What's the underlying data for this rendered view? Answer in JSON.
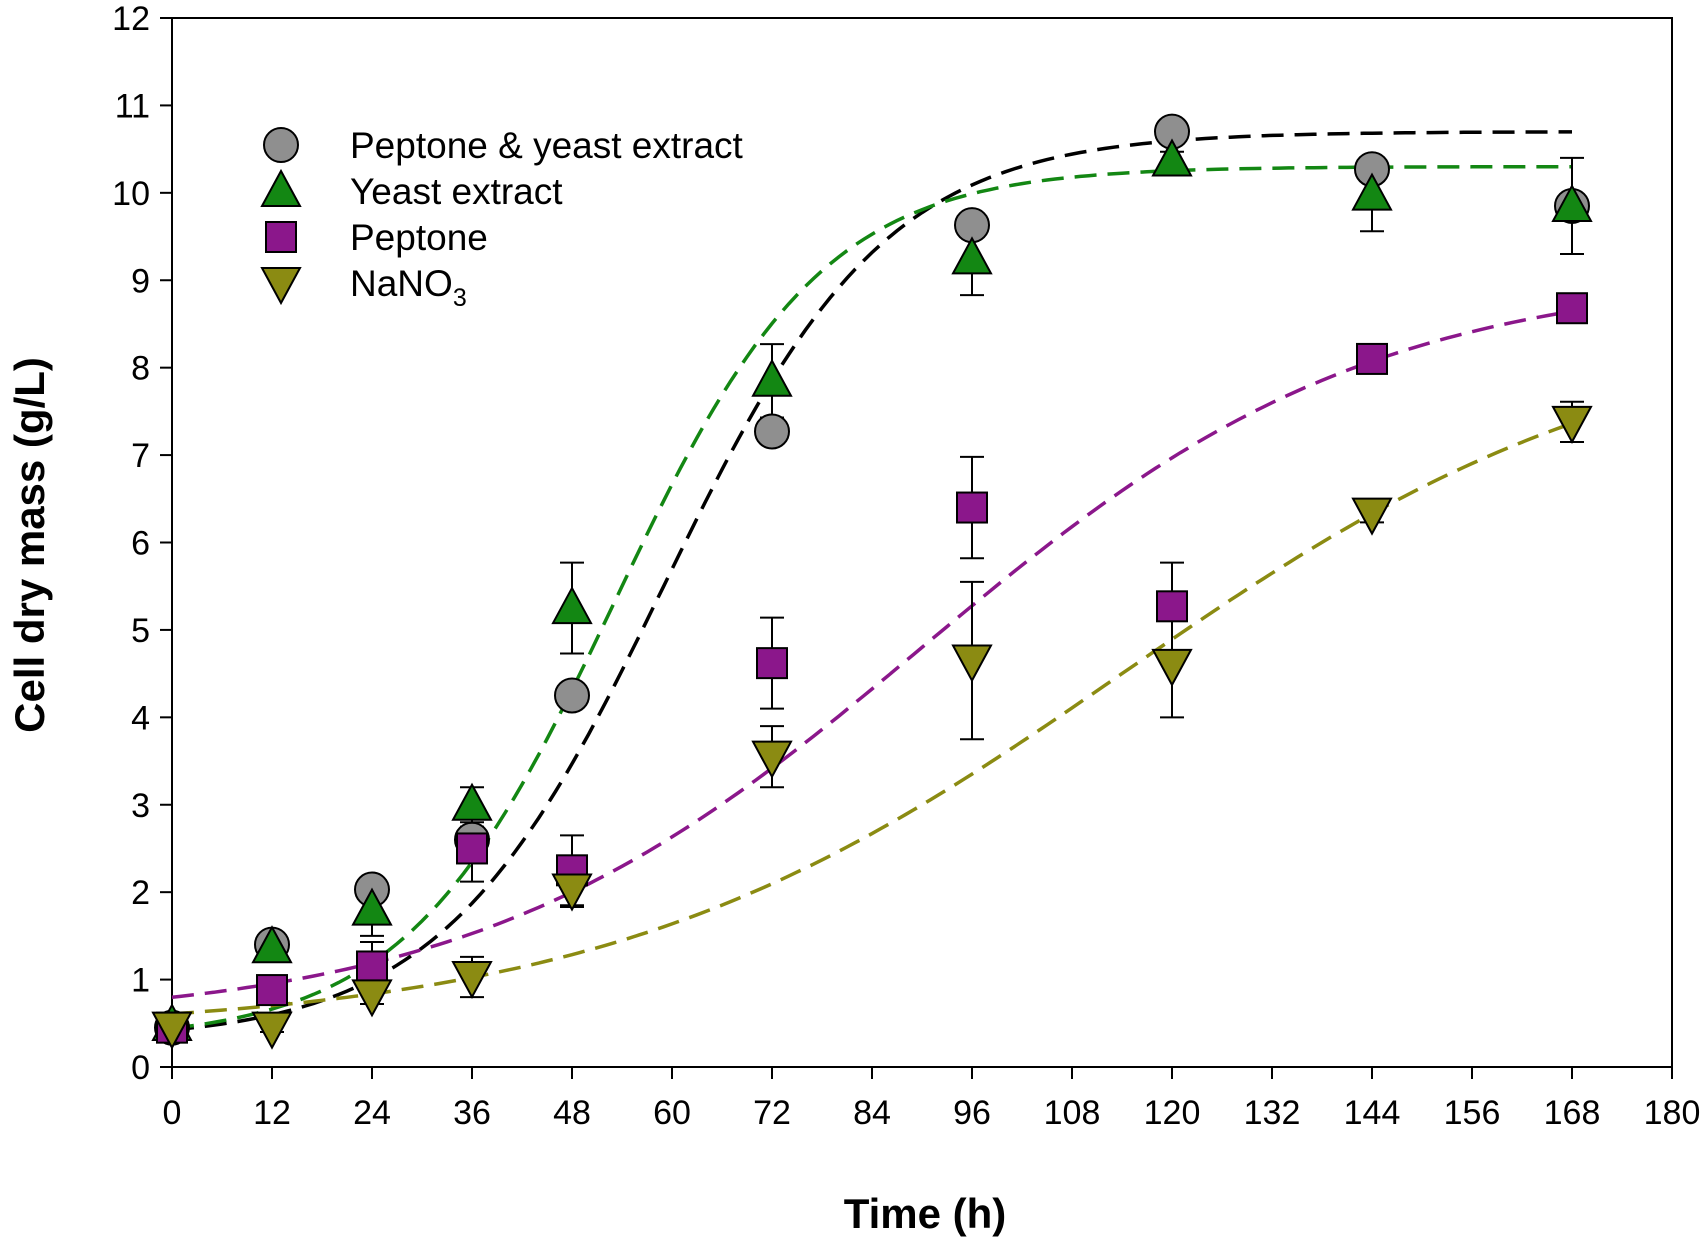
{
  "chart_data": {
    "type": "scatter",
    "title": "",
    "xlabel": "Time (h)",
    "ylabel": "Cell dry mass (g/L)",
    "xlim": [
      0,
      180
    ],
    "ylim": [
      0,
      12
    ],
    "x_ticks": [
      0,
      12,
      24,
      36,
      48,
      60,
      72,
      84,
      96,
      108,
      120,
      132,
      144,
      156,
      168,
      180
    ],
    "y_ticks": [
      0,
      1,
      2,
      3,
      4,
      5,
      6,
      7,
      8,
      9,
      10,
      11,
      12
    ],
    "grid": false,
    "legend_position": "top-left",
    "x": [
      0,
      12,
      24,
      36,
      48,
      72,
      96,
      120,
      144,
      168
    ],
    "series": [
      {
        "name": "Peptone & yeast extract",
        "legend_main": "Peptone & yeast extract",
        "legend_sub": "",
        "marker": "circle",
        "color": "#8f8f8f",
        "line_color": "#000000",
        "values": [
          0.45,
          1.4,
          2.03,
          2.6,
          4.25,
          7.27,
          9.63,
          10.7,
          10.27,
          9.85
        ],
        "errors": [
          0.05,
          0.1,
          0.1,
          0.15,
          0.1,
          0.1,
          0.12,
          0.12,
          0.1,
          0.1
        ],
        "fit": {
          "A": 10.4,
          "k": 0.075,
          "t0": 59,
          "base": 0.3
        }
      },
      {
        "name": "Yeast extract",
        "legend_main": "Yeast extract",
        "legend_sub": "",
        "marker": "triangle-up",
        "color": "#138713",
        "line_color": "#138713",
        "values": [
          0.48,
          1.37,
          1.8,
          3.0,
          5.25,
          7.85,
          9.25,
          10.37,
          9.98,
          9.85
        ],
        "errors": [
          0.05,
          0.1,
          0.3,
          0.2,
          0.52,
          0.42,
          0.42,
          0.1,
          0.42,
          0.55
        ],
        "fit": {
          "A": 10.0,
          "k": 0.08,
          "t0": 53,
          "base": 0.3
        }
      },
      {
        "name": "Peptone",
        "legend_main": "Peptone",
        "legend_sub": "",
        "marker": "square",
        "color": "#8b178b",
        "line_color": "#8b178b",
        "values": [
          0.45,
          0.88,
          1.15,
          2.5,
          2.25,
          4.62,
          6.4,
          5.27,
          8.1,
          8.68
        ],
        "errors": [
          0.05,
          0.1,
          0.28,
          0.38,
          0.4,
          0.52,
          0.58,
          0.5,
          0.1,
          0.1
        ],
        "fit": {
          "A": 8.6,
          "k": 0.037,
          "t0": 90,
          "base": 0.5
        }
      },
      {
        "name": "NaNO3",
        "legend_main": "NaNO",
        "legend_sub": "3",
        "marker": "triangle-down",
        "color": "#8b8b12",
        "line_color": "#8b8b12",
        "values": [
          0.45,
          0.45,
          0.82,
          1.03,
          2.03,
          3.55,
          4.65,
          4.6,
          6.33,
          7.38
        ],
        "errors": [
          0.05,
          0.05,
          0.1,
          0.23,
          0.2,
          0.35,
          0.9,
          0.6,
          0.1,
          0.23
        ],
        "fit": {
          "A": 8.2,
          "k": 0.032,
          "t0": 114,
          "base": 0.4
        }
      }
    ]
  }
}
